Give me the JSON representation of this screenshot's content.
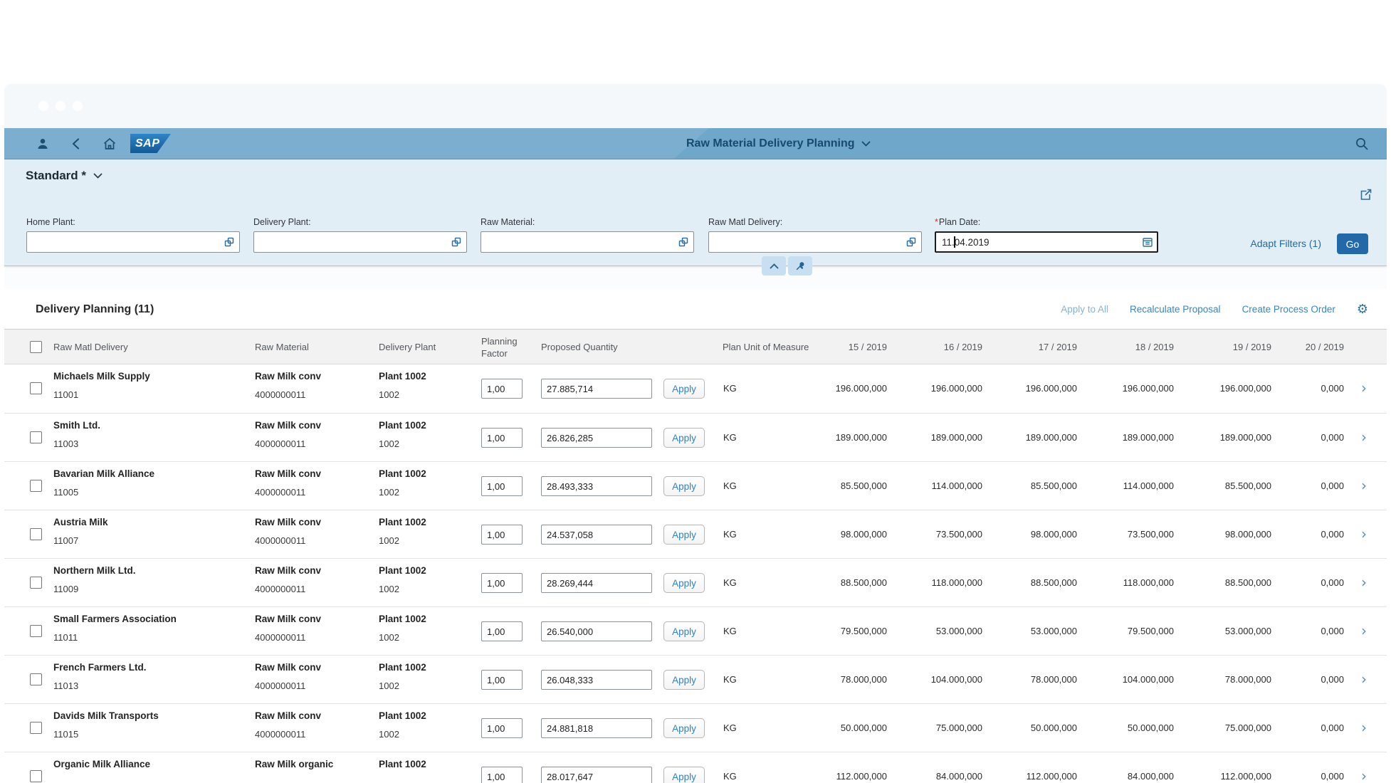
{
  "colors": {
    "shell_bar": "#6fa7cb",
    "panel_bg": "#e2eef6",
    "go_button": "#2368a9",
    "link_blue": "#3c86ba",
    "link_disabled": "#84b3d6",
    "shell_title_text": "#174a6e",
    "apply_button_text": "#3084c4",
    "required_red": "#c0392b"
  },
  "shell": {
    "logo": "SAP",
    "title": "Raw Material Delivery Planning"
  },
  "variant": {
    "title": "Standard *"
  },
  "filters": {
    "required_marker": "*",
    "fields": [
      {
        "label": "Home Plant:",
        "value": ""
      },
      {
        "label": "Delivery Plant:",
        "value": ""
      },
      {
        "label": "Raw Material:",
        "value": ""
      },
      {
        "label": "Raw Matl Delivery:",
        "value": ""
      },
      {
        "label": "Plan Date:",
        "value": "11.04.2019",
        "required": true
      }
    ],
    "adapt_filters": "Adapt Filters (1)",
    "go": "Go"
  },
  "table": {
    "title": "Delivery Planning (11)",
    "actions": {
      "apply_to_all": "Apply to All",
      "recalculate": "Recalculate Proposal",
      "create_process_order": "Create Process Order"
    },
    "apply_label": "Apply",
    "columns": {
      "raw_matl_delivery": "Raw Matl Delivery",
      "raw_material": "Raw Material",
      "delivery_plant": "Delivery Plant",
      "planning_factor": "Planning Factor",
      "proposed_quantity": "Proposed Quantity",
      "plan_unit": "Plan Unit of Measure"
    },
    "week_columns": [
      "15 / 2019",
      "16 / 2019",
      "17 / 2019",
      "18 / 2019",
      "19 / 2019",
      "20 / 2019"
    ],
    "rows": [
      {
        "name": "Michaels Milk Supply",
        "id": "11001",
        "material": "Raw Milk conv",
        "material_id": "4000000011",
        "plant": "Plant 1002",
        "plant_id": "1002",
        "factor": "1,00",
        "proposed": "27.885,714",
        "unit": "KG",
        "weeks": [
          "196.000,000",
          "196.000,000",
          "196.000,000",
          "196.000,000",
          "196.000,000",
          "0,000"
        ]
      },
      {
        "name": "Smith Ltd.",
        "id": "11003",
        "material": "Raw Milk conv",
        "material_id": "4000000011",
        "plant": "Plant 1002",
        "plant_id": "1002",
        "factor": "1,00",
        "proposed": "26.826,285",
        "unit": "KG",
        "weeks": [
          "189.000,000",
          "189.000,000",
          "189.000,000",
          "189.000,000",
          "189.000,000",
          "0,000"
        ]
      },
      {
        "name": "Bavarian Milk Alliance",
        "id": "11005",
        "material": "Raw Milk conv",
        "material_id": "4000000011",
        "plant": "Plant 1002",
        "plant_id": "1002",
        "factor": "1,00",
        "proposed": "28.493,333",
        "unit": "KG",
        "weeks": [
          "85.500,000",
          "114.000,000",
          "85.500,000",
          "114.000,000",
          "85.500,000",
          "0,000"
        ]
      },
      {
        "name": "Austria Milk",
        "id": "11007",
        "material": "Raw Milk conv",
        "material_id": "4000000011",
        "plant": "Plant 1002",
        "plant_id": "1002",
        "factor": "1,00",
        "proposed": "24.537,058",
        "unit": "KG",
        "weeks": [
          "98.000,000",
          "73.500,000",
          "98.000,000",
          "73.500,000",
          "98.000,000",
          "0,000"
        ]
      },
      {
        "name": "Northern Milk Ltd.",
        "id": "11009",
        "material": "Raw Milk conv",
        "material_id": "4000000011",
        "plant": "Plant 1002",
        "plant_id": "1002",
        "factor": "1,00",
        "proposed": "28.269,444",
        "unit": "KG",
        "weeks": [
          "88.500,000",
          "118.000,000",
          "88.500,000",
          "118.000,000",
          "88.500,000",
          "0,000"
        ]
      },
      {
        "name": "Small Farmers Association",
        "id": "11011",
        "material": "Raw Milk conv",
        "material_id": "4000000011",
        "plant": "Plant 1002",
        "plant_id": "1002",
        "factor": "1,00",
        "proposed": "26.540,000",
        "unit": "KG",
        "weeks": [
          "79.500,000",
          "53.000,000",
          "53.000,000",
          "79.500,000",
          "53.000,000",
          "0,000"
        ]
      },
      {
        "name": "French Farmers Ltd.",
        "id": "11013",
        "material": "Raw Milk conv",
        "material_id": "4000000011",
        "plant": "Plant 1002",
        "plant_id": "1002",
        "factor": "1,00",
        "proposed": "26.048,333",
        "unit": "KG",
        "weeks": [
          "78.000,000",
          "104.000,000",
          "78.000,000",
          "104.000,000",
          "78.000,000",
          "0,000"
        ]
      },
      {
        "name": "Davids Milk Transports",
        "id": "11015",
        "material": "Raw Milk conv",
        "material_id": "4000000011",
        "plant": "Plant 1002",
        "plant_id": "1002",
        "factor": "1,00",
        "proposed": "24.881,818",
        "unit": "KG",
        "weeks": [
          "50.000,000",
          "75.000,000",
          "50.000,000",
          "50.000,000",
          "75.000,000",
          "0,000"
        ]
      },
      {
        "name": "Organic Milk Alliance",
        "id": "",
        "material": "Raw Milk organic",
        "material_id": "",
        "plant": "Plant 1002",
        "plant_id": "",
        "factor": "1,00",
        "proposed": "28.017,647",
        "unit": "KG",
        "weeks": [
          "112.000,000",
          "84.000,000",
          "112.000,000",
          "84.000,000",
          "112.000,000",
          "0,000"
        ]
      }
    ]
  }
}
